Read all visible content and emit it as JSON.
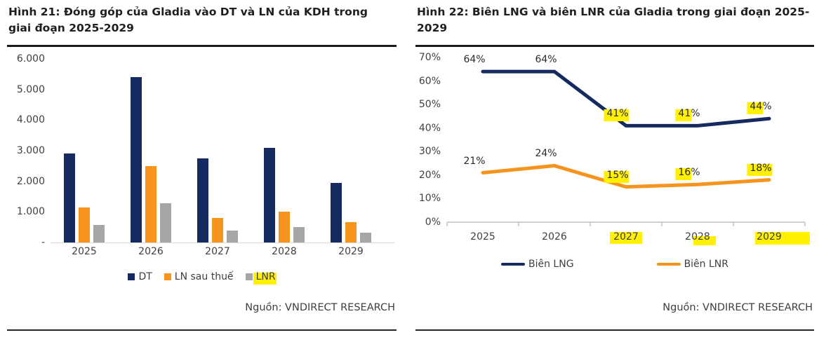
{
  "chart_data": [
    {
      "type": "bar",
      "title": "Hình 21: Đóng góp của Gladia vào DT và LN của KDH trong giai đoạn 2025-2029",
      "categories": [
        "2025",
        "2026",
        "2027",
        "2028",
        "2029"
      ],
      "series": [
        {
          "name": "DT",
          "color": "#152a5e",
          "values": [
            2900,
            5400,
            2750,
            3100,
            1950
          ]
        },
        {
          "name": "LN sau thuế",
          "color": "#f7941e",
          "values": [
            1150,
            2500,
            810,
            1000,
            660
          ]
        },
        {
          "name": "LNR",
          "color": "#a6a6a6",
          "values": [
            580,
            1280,
            390,
            500,
            320
          ]
        }
      ],
      "y_ticks": [
        "6.000",
        "5.000",
        "4.000",
        "3.000",
        "2.000",
        "1.000",
        "-"
      ],
      "ylim": [
        0,
        6000
      ],
      "grid": false,
      "legend_position": "bottom",
      "legend_highlight": "LNR",
      "source": "Nguồn: VNDIRECT RESEARCH"
    },
    {
      "type": "line",
      "title": "Hình 22: Biên LNG và biên LNR của Gladia trong giai đoạn 2025-2029",
      "categories": [
        "2025",
        "2026",
        "2027",
        "2028",
        "2029"
      ],
      "x_highlights": [
        "none",
        "none",
        "full",
        "partial",
        "extended"
      ],
      "series": [
        {
          "name": "Biên LNG",
          "color": "#152a5e",
          "values": [
            64,
            64,
            41,
            41,
            44
          ],
          "labels": [
            "64%",
            "64%",
            "41%",
            "41%",
            "44%"
          ],
          "label_highlights": [
            "none",
            "none",
            "full",
            "digits",
            "digits"
          ]
        },
        {
          "name": "Biên LNR",
          "color": "#f7941e",
          "values": [
            21,
            24,
            15,
            16,
            18
          ],
          "labels": [
            "21%",
            "24%",
            "15%",
            "16%",
            "18%"
          ],
          "label_highlights": [
            "none",
            "none",
            "full",
            "digits",
            "full"
          ]
        }
      ],
      "y_ticks": [
        "70%",
        "60%",
        "50%",
        "40%",
        "30%",
        "20%",
        "10%",
        "0%"
      ],
      "ylim": [
        0,
        70
      ],
      "grid": false,
      "legend_position": "bottom",
      "highlight_color": "#fff100",
      "source": "Nguồn: VNDIRECT RESEARCH"
    }
  ]
}
